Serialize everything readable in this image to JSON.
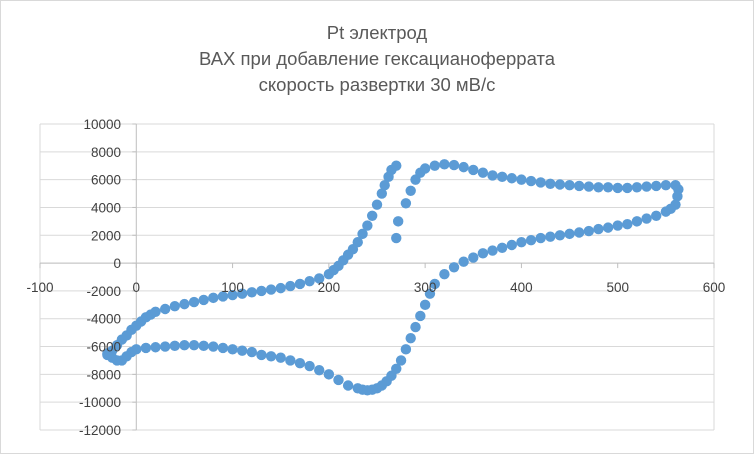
{
  "chart_data": {
    "type": "scatter",
    "title_lines": [
      "Pt электрод",
      "ВАХ при добавление гексацианоферрата",
      "скорость развертки 30 мВ/с"
    ],
    "xlabel": "",
    "ylabel": "",
    "xlim": [
      -100,
      600
    ],
    "ylim": [
      -12000,
      10000
    ],
    "x_ticks": [
      -100,
      0,
      100,
      200,
      300,
      400,
      500,
      600
    ],
    "y_ticks": [
      10000,
      8000,
      6000,
      4000,
      2000,
      0,
      -2000,
      -4000,
      -6000,
      -8000,
      -10000,
      -12000
    ],
    "x_tick_labels": [
      "-100",
      "0",
      "100",
      "200",
      "300",
      "400",
      "500",
      "600"
    ],
    "y_tick_labels": [
      "10000",
      "8000",
      "6000",
      "4000",
      "2000",
      "0",
      "-2000",
      "-4000",
      "-6000",
      "-8000",
      "-10000",
      "-12000"
    ],
    "grid": "horizontal",
    "legend": "none",
    "colors": {
      "marker": "#5b9bd5",
      "grid": "#d9d9d9",
      "axis": "#d9d9d9",
      "text": "#595959"
    },
    "series": [
      {
        "points": [
          [
            -30,
            -6500
          ],
          [
            -25,
            -6300
          ],
          [
            -20,
            -5900
          ],
          [
            -15,
            -5500
          ],
          [
            -10,
            -5200
          ],
          [
            -5,
            -4800
          ],
          [
            0,
            -4500
          ],
          [
            5,
            -4200
          ],
          [
            10,
            -3900
          ],
          [
            15,
            -3700
          ],
          [
            20,
            -3500
          ],
          [
            30,
            -3300
          ],
          [
            40,
            -3100
          ],
          [
            50,
            -2950
          ],
          [
            60,
            -2800
          ],
          [
            70,
            -2650
          ],
          [
            80,
            -2500
          ],
          [
            90,
            -2400
          ],
          [
            100,
            -2300
          ],
          [
            110,
            -2200
          ],
          [
            120,
            -2100
          ],
          [
            130,
            -2000
          ],
          [
            140,
            -1900
          ],
          [
            150,
            -1800
          ],
          [
            160,
            -1650
          ],
          [
            170,
            -1500
          ],
          [
            180,
            -1300
          ],
          [
            190,
            -1100
          ],
          [
            200,
            -800
          ],
          [
            205,
            -500
          ],
          [
            210,
            -200
          ],
          [
            215,
            200
          ],
          [
            220,
            600
          ],
          [
            225,
            1000
          ],
          [
            230,
            1500
          ],
          [
            235,
            2100
          ],
          [
            240,
            2700
          ],
          [
            245,
            3400
          ],
          [
            250,
            4200
          ],
          [
            255,
            5000
          ],
          [
            258,
            5600
          ],
          [
            262,
            6200
          ],
          [
            265,
            6700
          ],
          [
            270,
            7000
          ],
          [
            270,
            1800
          ],
          [
            272,
            3000
          ],
          [
            280,
            4300
          ],
          [
            285,
            5200
          ],
          [
            290,
            6000
          ],
          [
            295,
            6500
          ],
          [
            300,
            6800
          ],
          [
            310,
            7000
          ],
          [
            320,
            7100
          ],
          [
            330,
            7050
          ],
          [
            340,
            6900
          ],
          [
            350,
            6700
          ],
          [
            360,
            6500
          ],
          [
            370,
            6300
          ],
          [
            380,
            6200
          ],
          [
            390,
            6100
          ],
          [
            400,
            6000
          ],
          [
            410,
            5900
          ],
          [
            420,
            5800
          ],
          [
            430,
            5700
          ],
          [
            440,
            5650
          ],
          [
            450,
            5600
          ],
          [
            460,
            5550
          ],
          [
            470,
            5500
          ],
          [
            480,
            5450
          ],
          [
            490,
            5450
          ],
          [
            500,
            5400
          ],
          [
            510,
            5400
          ],
          [
            520,
            5450
          ],
          [
            530,
            5500
          ],
          [
            540,
            5550
          ],
          [
            550,
            5600
          ],
          [
            560,
            5600
          ],
          [
            563,
            5300
          ],
          [
            562,
            4800
          ],
          [
            560,
            4200
          ],
          [
            555,
            3900
          ],
          [
            550,
            3700
          ],
          [
            540,
            3400
          ],
          [
            530,
            3200
          ],
          [
            520,
            3000
          ],
          [
            510,
            2800
          ],
          [
            500,
            2700
          ],
          [
            490,
            2550
          ],
          [
            480,
            2450
          ],
          [
            470,
            2300
          ],
          [
            460,
            2200
          ],
          [
            450,
            2100
          ],
          [
            440,
            2000
          ],
          [
            430,
            1900
          ],
          [
            420,
            1800
          ],
          [
            410,
            1650
          ],
          [
            400,
            1500
          ],
          [
            390,
            1300
          ],
          [
            380,
            1100
          ],
          [
            370,
            900
          ],
          [
            360,
            700
          ],
          [
            350,
            400
          ],
          [
            340,
            100
          ],
          [
            330,
            -300
          ],
          [
            320,
            -800
          ],
          [
            310,
            -1500
          ],
          [
            305,
            -2200
          ],
          [
            300,
            -3000
          ],
          [
            295,
            -3800
          ],
          [
            290,
            -4600
          ],
          [
            285,
            -5400
          ],
          [
            280,
            -6200
          ],
          [
            275,
            -7000
          ],
          [
            270,
            -7600
          ],
          [
            265,
            -8100
          ],
          [
            260,
            -8500
          ],
          [
            255,
            -8800
          ],
          [
            250,
            -9000
          ],
          [
            245,
            -9100
          ],
          [
            240,
            -9150
          ],
          [
            235,
            -9100
          ],
          [
            230,
            -9000
          ],
          [
            220,
            -8800
          ],
          [
            210,
            -8400
          ],
          [
            200,
            -8000
          ],
          [
            190,
            -7700
          ],
          [
            180,
            -7400
          ],
          [
            170,
            -7200
          ],
          [
            160,
            -7000
          ],
          [
            150,
            -6800
          ],
          [
            140,
            -6700
          ],
          [
            130,
            -6600
          ],
          [
            120,
            -6400
          ],
          [
            110,
            -6300
          ],
          [
            100,
            -6200
          ],
          [
            90,
            -6100
          ],
          [
            80,
            -6000
          ],
          [
            70,
            -5950
          ],
          [
            60,
            -5900
          ],
          [
            50,
            -5900
          ],
          [
            40,
            -5950
          ],
          [
            30,
            -6000
          ],
          [
            20,
            -6050
          ],
          [
            10,
            -6100
          ],
          [
            0,
            -6200
          ],
          [
            -5,
            -6400
          ],
          [
            -10,
            -6700
          ],
          [
            -15,
            -7000
          ],
          [
            -20,
            -7000
          ],
          [
            -25,
            -6800
          ],
          [
            -30,
            -6600
          ]
        ]
      }
    ]
  }
}
